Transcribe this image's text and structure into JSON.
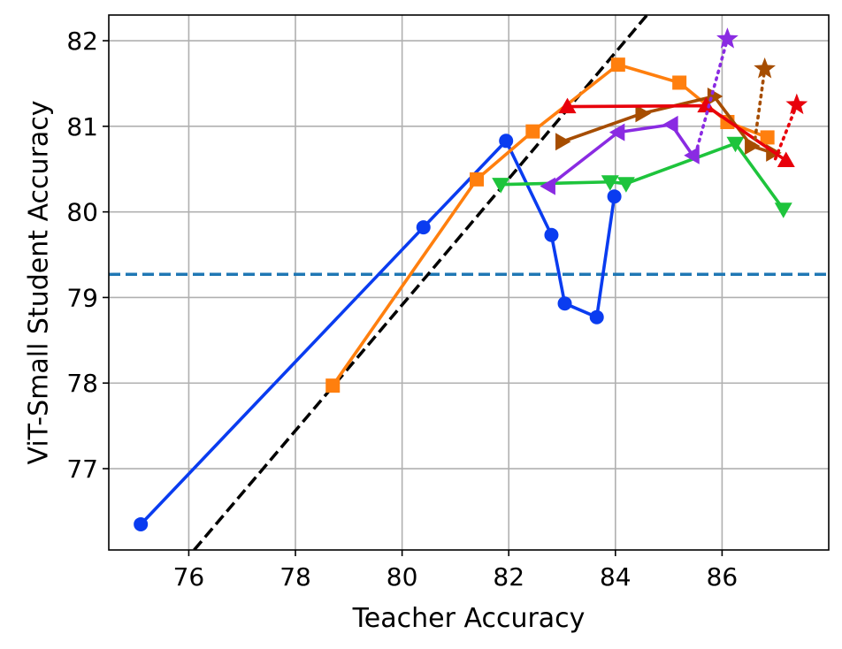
{
  "chart_data": {
    "type": "line",
    "title": "",
    "xlabel": "Teacher Accuracy",
    "ylabel": "ViT-Small Student Accuracy",
    "xlim": [
      74.5,
      88.0
    ],
    "ylim": [
      76.05,
      82.3
    ],
    "xticks": [
      76,
      78,
      80,
      82,
      84,
      86
    ],
    "yticks": [
      77,
      78,
      79,
      80,
      81,
      82
    ],
    "xtick_labels": [
      "76",
      "78",
      "80",
      "82",
      "84",
      "86"
    ],
    "ytick_labels": [
      "77",
      "78",
      "79",
      "80",
      "81",
      "82"
    ],
    "grid": true,
    "legend": "none",
    "reference_lines": [
      {
        "kind": "horizontal",
        "y": 79.27,
        "style": "dashed",
        "color": "#1f77b4"
      },
      {
        "kind": "diagonal",
        "points": [
          [
            76.1,
            76.05
          ],
          [
            80.5,
            79.28
          ],
          [
            85.0,
            82.6
          ]
        ],
        "style": "dashed",
        "color": "#000000"
      }
    ],
    "series": [
      {
        "color": "#0a3cf0",
        "marker": "circle",
        "style": "solid",
        "x": [
          75.1,
          80.4,
          81.95,
          82.8,
          83.05,
          83.65,
          83.98
        ],
        "y": [
          76.35,
          79.82,
          80.83,
          79.73,
          78.93,
          78.77,
          80.18
        ]
      },
      {
        "color": "#ff7f0e",
        "marker": "square",
        "style": "solid",
        "x": [
          78.7,
          81.4,
          82.45,
          84.05,
          85.2,
          86.1,
          86.85
        ],
        "y": [
          77.97,
          80.38,
          80.94,
          81.72,
          81.51,
          81.05,
          80.87
        ]
      },
      {
        "color": "#1ec43c",
        "marker": "triangle-down",
        "style": "solid",
        "x": [
          81.85,
          83.9,
          84.2,
          86.25,
          87.15
        ],
        "y": [
          80.32,
          80.35,
          80.33,
          80.8,
          80.03
        ]
      },
      {
        "color": "#8a2be2",
        "marker": "triangle-left",
        "style": "solid",
        "x": [
          82.75,
          84.05,
          85.05,
          85.45
        ],
        "y": [
          80.3,
          80.93,
          81.02,
          80.66
        ]
      },
      {
        "color": "#a64d00",
        "marker": "triangle-right",
        "style": "solid",
        "x": [
          83.0,
          84.5,
          85.85,
          86.55,
          86.95
        ],
        "y": [
          80.82,
          81.15,
          81.35,
          80.77,
          80.69
        ]
      },
      {
        "color": "#e8000b",
        "marker": "triangle-up",
        "style": "solid",
        "x": [
          83.1,
          85.7,
          87.2
        ],
        "y": [
          81.23,
          81.24,
          80.6
        ]
      },
      {
        "color": "#8a2be2",
        "marker": "star",
        "style": "dotted",
        "x": [
          85.5,
          86.1
        ],
        "y": [
          80.67,
          82.02
        ]
      },
      {
        "color": "#a64d00",
        "marker": "star",
        "style": "dotted",
        "x": [
          86.6,
          86.8
        ],
        "y": [
          80.77,
          81.67
        ]
      },
      {
        "color": "#e8000b",
        "marker": "star",
        "style": "dotted",
        "x": [
          87.0,
          87.4
        ],
        "y": [
          80.62,
          81.25
        ]
      }
    ]
  }
}
